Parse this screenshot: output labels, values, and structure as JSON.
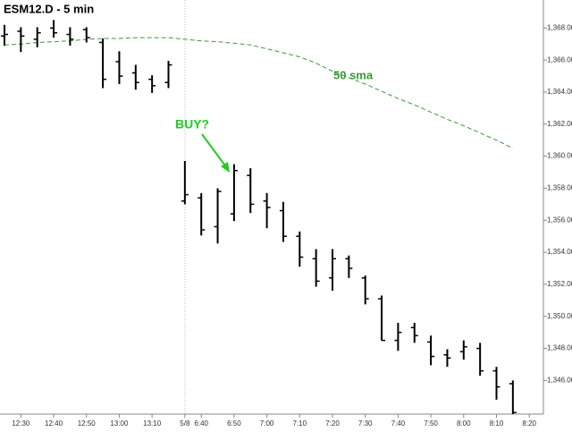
{
  "chart_data": {
    "type": "ohlc",
    "title": "ESM12.D - 5 min",
    "categories": [
      null,
      "12:30",
      null,
      "12:40",
      null,
      "12:50",
      null,
      "13:00",
      null,
      "13:10",
      null,
      "5/8",
      "6:40",
      null,
      "6:50",
      null,
      "7:00",
      null,
      "7:10",
      null,
      "7:20",
      null,
      "7:30",
      null,
      "7:40",
      null,
      "7:50",
      null,
      "8:00",
      null,
      "8:10",
      null,
      "8:20"
    ],
    "open": [
      1367.5,
      1367.8,
      1367.3,
      1368.0,
      1367.6,
      1367.9,
      1367.1,
      1365.9,
      1365.2,
      1364.8,
      1364.6,
      1357.2,
      1357.4,
      1355.6,
      1356.4,
      1358.8,
      1357.2,
      1356.6,
      1355.0,
      1353.6,
      1352.4,
      1353.6,
      1352.4,
      1351.1,
      1348.5,
      1349.3,
      1348.4,
      1347.6,
      1347.8,
      1348.0,
      1346.6,
      1345.8,
      null
    ],
    "high": [
      1368.2,
      1368.05,
      1368.05,
      1368.5,
      1368.05,
      1368.05,
      1367.35,
      1366.55,
      1365.7,
      1365.05,
      1365.95,
      1359.7,
      1357.7,
      1358.0,
      1359.5,
      1359.25,
      1357.7,
      1357.15,
      1355.3,
      1354.2,
      1354.2,
      1353.8,
      1352.55,
      1351.3,
      1349.6,
      1349.6,
      1348.8,
      1347.95,
      1348.5,
      1348.35,
      1346.85,
      1346.0,
      null
    ],
    "low": [
      1366.9,
      1366.5,
      1366.8,
      1367.4,
      1366.9,
      1367.1,
      1364.25,
      1364.5,
      1364.15,
      1363.95,
      1364.25,
      1357.0,
      1355.05,
      1354.55,
      1355.95,
      1356.45,
      1355.5,
      1354.65,
      1353.1,
      1351.85,
      1351.6,
      1352.4,
      1350.75,
      1348.5,
      1347.85,
      1348.35,
      1346.95,
      1346.85,
      1347.3,
      1346.3,
      1344.8,
      1343.9,
      null
    ],
    "close": [
      1367.6,
      1367.5,
      1367.7,
      1367.7,
      1367.3,
      1367.4,
      1364.8,
      1365.0,
      1364.6,
      1364.4,
      1365.7,
      1357.6,
      1355.4,
      1357.8,
      1359.1,
      1357.0,
      1356.8,
      1355.0,
      1353.7,
      1352.2,
      1353.6,
      1353.0,
      1351.1,
      1348.5,
      1349.0,
      1348.8,
      1347.5,
      1347.4,
      1348.1,
      1346.6,
      1345.6,
      1344.0,
      null
    ],
    "color": "#000000",
    "overlay": {
      "name": "50 sma",
      "color": "#3a9a3a",
      "values": [
        1366.95,
        1367.0,
        1367.1,
        1367.15,
        1367.2,
        1367.3,
        1367.35,
        1367.35,
        1367.4,
        1367.4,
        1367.4,
        1367.3,
        1367.2,
        1367.15,
        1367.05,
        1366.95,
        1366.7,
        1366.45,
        1366.2,
        1365.8,
        1365.3,
        1364.9,
        1364.5,
        1364.05,
        1363.6,
        1363.2,
        1362.75,
        1362.3,
        1361.9,
        1361.45,
        1361.0,
        1360.5,
        null
      ]
    },
    "annotations": [
      {
        "text": "BUY?",
        "color": "#22cc22"
      }
    ],
    "ylim": [
      1343.9,
      1369.75
    ],
    "yticks": [
      {
        "value": 1346,
        "label": "1,346.00"
      },
      {
        "value": 1348,
        "label": "1,348.00"
      },
      {
        "value": 1350,
        "label": "1,350.00"
      },
      {
        "value": 1352,
        "label": "1,352.00"
      },
      {
        "value": 1354,
        "label": "1,354.00"
      },
      {
        "value": 1356,
        "label": "1,356.00"
      },
      {
        "value": 1358,
        "label": "1,358.00"
      },
      {
        "value": 1360,
        "label": "1,360.00"
      },
      {
        "value": 1362,
        "label": "1,362.00"
      },
      {
        "value": 1364,
        "label": "1,364.00"
      },
      {
        "value": 1366,
        "label": "1,366.00"
      },
      {
        "value": 1368,
        "label": "1,368.00"
      }
    ]
  }
}
